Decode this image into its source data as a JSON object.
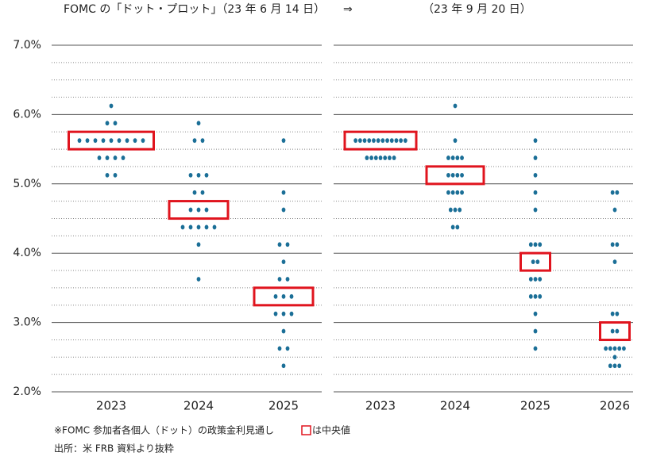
{
  "chart_data": [
    {
      "type": "dot",
      "title": "FOMC の「ドット・プロット」（23 年 6 月 14 日）",
      "categories": [
        "2023",
        "2024",
        "2025"
      ],
      "values": [
        [
          6.125,
          5.875,
          5.875,
          5.625,
          5.625,
          5.625,
          5.625,
          5.625,
          5.625,
          5.625,
          5.625,
          5.625,
          5.375,
          5.375,
          5.375,
          5.375,
          5.125,
          5.125
        ],
        [
          5.875,
          5.625,
          5.625,
          5.125,
          5.125,
          5.125,
          4.875,
          4.875,
          4.625,
          4.625,
          4.625,
          4.375,
          4.375,
          4.375,
          4.375,
          4.375,
          4.125,
          3.625
        ],
        [
          5.625,
          4.875,
          4.625,
          4.125,
          4.125,
          3.875,
          3.625,
          3.625,
          3.375,
          3.375,
          3.375,
          3.125,
          3.125,
          3.125,
          2.875,
          2.625,
          2.625,
          2.375
        ]
      ],
      "medians": [
        5.625,
        4.625,
        3.375
      ],
      "color": "#1b6f97",
      "median_color": "#e0141e",
      "ylim": [
        2,
        7
      ],
      "yticks": [
        {
          "value": 2,
          "label": "2.0%"
        },
        {
          "value": 3,
          "label": "3.0%"
        },
        {
          "value": 4,
          "label": "4.0%"
        },
        {
          "value": 5,
          "label": "5.0%"
        },
        {
          "value": 6,
          "label": "6.0%"
        },
        {
          "value": 7,
          "label": "7.0%"
        }
      ],
      "minor_yticks": [
        2.25,
        2.5,
        2.75,
        3.25,
        3.5,
        3.75,
        4.25,
        4.5,
        4.75,
        5.25,
        5.5,
        5.75,
        6.25,
        6.5,
        6.75
      ]
    },
    {
      "type": "dot",
      "title": "（23 年 9 月 20 日）",
      "categories": [
        "2023",
        "2024",
        "2025",
        "2026"
      ],
      "values": [
        [
          5.625,
          5.625,
          5.625,
          5.625,
          5.625,
          5.625,
          5.625,
          5.625,
          5.625,
          5.625,
          5.625,
          5.625,
          5.375,
          5.375,
          5.375,
          5.375,
          5.375,
          5.375,
          5.375
        ],
        [
          6.125,
          5.625,
          5.375,
          5.375,
          5.375,
          5.375,
          5.125,
          5.125,
          5.125,
          5.125,
          4.875,
          4.875,
          4.875,
          4.875,
          4.625,
          4.625,
          4.625,
          4.375,
          4.375
        ],
        [
          5.625,
          5.375,
          5.125,
          4.875,
          4.625,
          4.125,
          4.125,
          4.125,
          3.875,
          3.875,
          3.625,
          3.625,
          3.625,
          3.375,
          3.375,
          3.375,
          3.125,
          2.875,
          2.625
        ],
        [
          4.875,
          4.875,
          4.625,
          4.125,
          4.125,
          3.875,
          3.125,
          3.125,
          2.875,
          2.875,
          2.625,
          2.625,
          2.625,
          2.625,
          2.625,
          2.5,
          2.375,
          2.375,
          2.375
        ]
      ],
      "medians": [
        5.625,
        5.125,
        3.875,
        2.875
      ],
      "color": "#1b6f97",
      "median_color": "#e0141e",
      "ylim": [
        2,
        7
      ],
      "yticks": [
        2,
        3,
        4,
        5,
        6,
        7
      ],
      "minor_yticks": [
        2.25,
        2.5,
        2.75,
        3.25,
        3.5,
        3.75,
        4.25,
        4.5,
        4.75,
        5.25,
        5.5,
        5.75,
        6.25,
        6.5,
        6.75
      ]
    }
  ],
  "arrow": "⇒",
  "notes": {
    "line1": "※FOMC 参加者各個人（ドット）の政策金利見通し",
    "legend": "は中央値",
    "source": "出所：米 FRB 資料より抜粋"
  }
}
